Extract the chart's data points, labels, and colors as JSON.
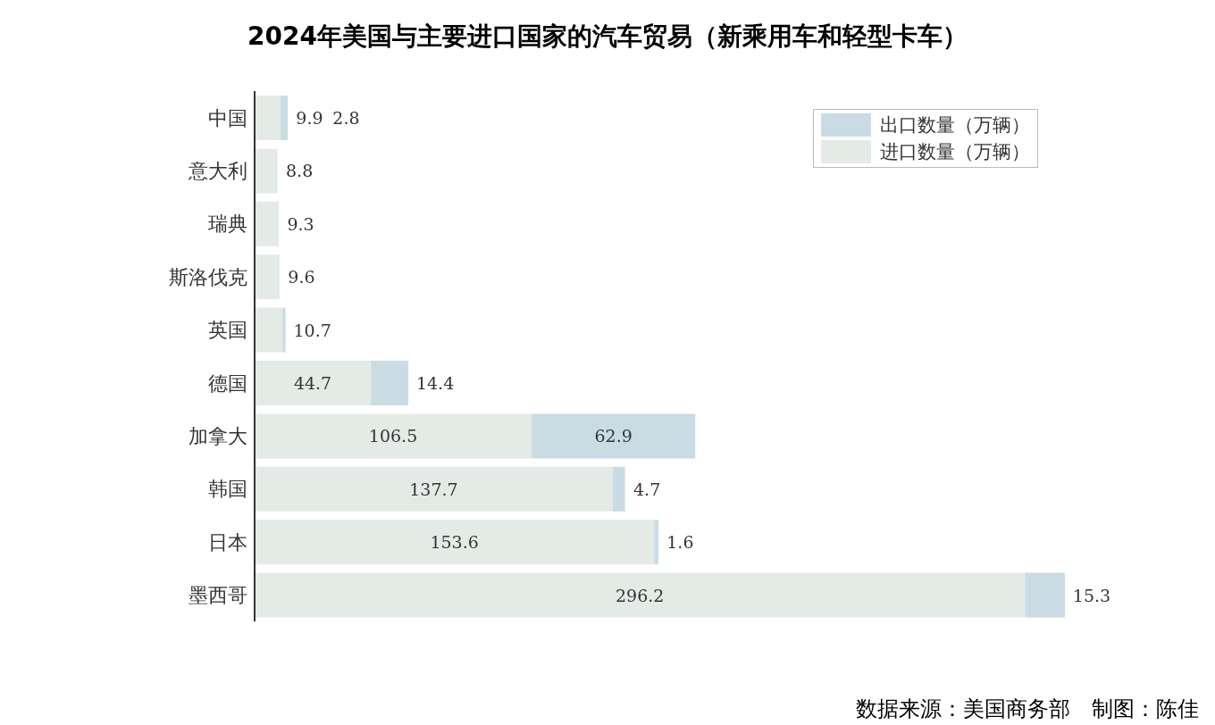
{
  "chart_data": {
    "type": "bar",
    "orientation": "horizontal",
    "stacked": true,
    "title": "2024年美国与主要进口国家的汽车贸易（新乘用车和轻型卡车）",
    "categories": [
      "中国",
      "意大利",
      "瑞典",
      "斯洛伐克",
      "英国",
      "德国",
      "加拿大",
      "韩国",
      "日本",
      "墨西哥"
    ],
    "series": [
      {
        "name": "进口数量（万辆）",
        "color": "#e4ebe6",
        "values": [
          9.9,
          8.8,
          9.3,
          9.6,
          10.7,
          44.7,
          106.5,
          137.7,
          153.6,
          296.2
        ]
      },
      {
        "name": "出口数量（万辆）",
        "color": "#c9dce4",
        "values": [
          2.8,
          null,
          null,
          null,
          1.2,
          14.4,
          62.9,
          4.7,
          1.6,
          15.3
        ],
        "value_labels": [
          "2.8",
          null,
          null,
          null,
          null,
          "14.4",
          "62.9",
          "4.7",
          "1.6",
          "15.3"
        ]
      }
    ],
    "data_labels": true,
    "legend": "top right",
    "grid": false,
    "annotations": [
      "数据来源：美国商务部　制图：陈佳"
    ]
  }
}
